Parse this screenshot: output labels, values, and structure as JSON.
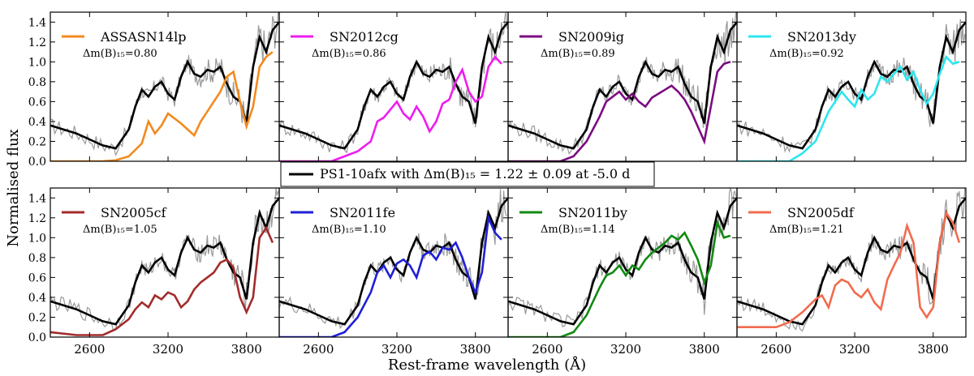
{
  "chart_data": {
    "type": "line",
    "xlabel": "Rest-frame wavelength (Å)",
    "ylabel": "Normalised flux",
    "xlim": [
      2300,
      4050
    ],
    "ylim": [
      0.0,
      1.5
    ],
    "xticks": [
      2600,
      3200,
      3800
    ],
    "yticks": [
      0.0,
      0.2,
      0.4,
      0.6,
      0.8,
      1.0,
      1.2,
      1.4
    ],
    "xtick_labels": [
      "2600",
      "3200",
      "3800"
    ],
    "ytick_labels": [
      "0.0",
      "0.2",
      "0.4",
      "0.6",
      "0.8",
      "1.0",
      "1.2",
      "1.4"
    ],
    "reference": {
      "name": "PS1-10afx",
      "color": "#000000",
      "legend_text": "PS1-10afx with Δm(B)₁₅ = 1.22 ± 0.09 at -5.0 d",
      "x": [
        2300,
        2400,
        2500,
        2600,
        2700,
        2800,
        2900,
        2950,
        3000,
        3050,
        3100,
        3150,
        3200,
        3250,
        3300,
        3350,
        3400,
        3450,
        3500,
        3550,
        3600,
        3650,
        3700,
        3750,
        3800,
        3850,
        3900,
        3950,
        4000,
        4050
      ],
      "y": [
        0.36,
        0.32,
        0.28,
        0.22,
        0.16,
        0.13,
        0.32,
        0.55,
        0.72,
        0.65,
        0.75,
        0.8,
        0.68,
        0.62,
        0.85,
        1.0,
        0.88,
        0.85,
        0.92,
        0.9,
        0.95,
        0.78,
        0.65,
        0.6,
        0.38,
        0.95,
        1.25,
        1.1,
        1.32,
        1.4
      ]
    },
    "panels": [
      {
        "name": "ASSASN14lp",
        "color": "#f28a1e",
        "dm15": "0.80",
        "x": [
          2300,
          2700,
          2800,
          2900,
          3000,
          3050,
          3100,
          3150,
          3200,
          3300,
          3400,
          3450,
          3500,
          3550,
          3600,
          3650,
          3700,
          3750,
          3800,
          3850,
          3900,
          3950,
          4000
        ],
        "y": [
          0.0,
          0.0,
          0.01,
          0.05,
          0.18,
          0.4,
          0.28,
          0.36,
          0.48,
          0.38,
          0.26,
          0.4,
          0.5,
          0.6,
          0.7,
          0.85,
          0.9,
          0.6,
          0.35,
          0.55,
          0.95,
          1.05,
          1.1
        ]
      },
      {
        "name": "SN2012cg",
        "color": "#ee1cee",
        "dm15": "0.86",
        "x": [
          2300,
          2700,
          2800,
          2900,
          3000,
          3050,
          3100,
          3150,
          3200,
          3250,
          3300,
          3350,
          3400,
          3450,
          3500,
          3550,
          3600,
          3650,
          3700,
          3750,
          3800,
          3850,
          3900,
          3950,
          4000
        ],
        "y": [
          0.0,
          0.0,
          0.05,
          0.1,
          0.2,
          0.4,
          0.44,
          0.52,
          0.6,
          0.48,
          0.42,
          0.55,
          0.45,
          0.3,
          0.4,
          0.58,
          0.62,
          0.8,
          0.92,
          0.7,
          0.6,
          0.65,
          0.95,
          1.05,
          0.98
        ]
      },
      {
        "name": "SN2009ig",
        "color": "#7b0c80",
        "dm15": "0.89",
        "x": [
          2300,
          2700,
          2800,
          2900,
          3000,
          3050,
          3100,
          3150,
          3200,
          3250,
          3300,
          3350,
          3400,
          3450,
          3500,
          3550,
          3600,
          3650,
          3700,
          3750,
          3800,
          3850,
          3900,
          3950,
          4000
        ],
        "y": [
          0.0,
          0.0,
          0.05,
          0.2,
          0.45,
          0.6,
          0.65,
          0.7,
          0.62,
          0.68,
          0.6,
          0.55,
          0.64,
          0.68,
          0.72,
          0.76,
          0.7,
          0.62,
          0.5,
          0.35,
          0.2,
          0.55,
          0.9,
          0.98,
          1.0
        ]
      },
      {
        "name": "SN2013dy",
        "color": "#2ce6ee",
        "dm15": "0.92",
        "x": [
          2300,
          2700,
          2800,
          2900,
          3000,
          3050,
          3100,
          3150,
          3200,
          3250,
          3300,
          3350,
          3400,
          3450,
          3500,
          3550,
          3600,
          3650,
          3700,
          3750,
          3800,
          3850,
          3900,
          3950,
          4000
        ],
        "y": [
          0.0,
          0.0,
          0.08,
          0.2,
          0.5,
          0.6,
          0.7,
          0.62,
          0.55,
          0.72,
          0.62,
          0.68,
          0.85,
          0.8,
          0.88,
          0.95,
          0.82,
          0.9,
          0.72,
          0.58,
          0.68,
          0.88,
          1.05,
          0.98,
          1.0
        ]
      },
      {
        "name": "SN2005cf",
        "color": "#a32b2b",
        "dm15": "1.05",
        "x": [
          2300,
          2500,
          2700,
          2800,
          2900,
          2950,
          3000,
          3050,
          3100,
          3150,
          3200,
          3250,
          3300,
          3350,
          3400,
          3450,
          3500,
          3550,
          3600,
          3650,
          3700,
          3750,
          3800,
          3850,
          3900,
          3950,
          4000
        ],
        "y": [
          0.05,
          0.02,
          0.02,
          0.08,
          0.18,
          0.28,
          0.35,
          0.3,
          0.42,
          0.38,
          0.45,
          0.42,
          0.3,
          0.36,
          0.48,
          0.55,
          0.6,
          0.65,
          0.75,
          0.78,
          0.7,
          0.4,
          0.25,
          0.4,
          1.0,
          1.1,
          0.95
        ]
      },
      {
        "name": "SN2011fe",
        "color": "#1f1fd6",
        "dm15": "1.10",
        "x": [
          2300,
          2700,
          2800,
          2900,
          3000,
          3050,
          3100,
          3150,
          3200,
          3250,
          3300,
          3350,
          3400,
          3450,
          3500,
          3550,
          3600,
          3650,
          3700,
          3750,
          3800,
          3850,
          3900,
          3950,
          4000
        ],
        "y": [
          0.0,
          0.0,
          0.05,
          0.2,
          0.45,
          0.65,
          0.72,
          0.6,
          0.74,
          0.78,
          0.72,
          0.6,
          0.82,
          0.86,
          0.78,
          0.9,
          0.88,
          0.95,
          0.8,
          0.6,
          0.45,
          0.65,
          1.2,
          1.05,
          0.98
        ]
      },
      {
        "name": "SN2011by",
        "color": "#118a11",
        "dm15": "1.14",
        "x": [
          2300,
          2700,
          2800,
          2900,
          3000,
          3050,
          3100,
          3150,
          3200,
          3250,
          3300,
          3350,
          3400,
          3450,
          3500,
          3550,
          3600,
          3650,
          3700,
          3750,
          3800,
          3850,
          3900,
          3950,
          4000
        ],
        "y": [
          0.0,
          0.0,
          0.05,
          0.22,
          0.5,
          0.62,
          0.65,
          0.72,
          0.62,
          0.72,
          0.68,
          0.78,
          0.85,
          0.9,
          0.95,
          1.02,
          0.98,
          1.05,
          0.92,
          0.78,
          0.55,
          0.72,
          1.15,
          1.0,
          1.02
        ]
      },
      {
        "name": "SN2005df",
        "color": "#f26b4e",
        "dm15": "1.21",
        "x": [
          2300,
          2600,
          2700,
          2800,
          2900,
          2950,
          3000,
          3050,
          3100,
          3150,
          3200,
          3250,
          3300,
          3350,
          3400,
          3450,
          3500,
          3550,
          3600,
          3650,
          3700,
          3750,
          3800,
          3850,
          3900,
          3950,
          4000
        ],
        "y": [
          0.1,
          0.1,
          0.15,
          0.25,
          0.38,
          0.42,
          0.3,
          0.52,
          0.58,
          0.55,
          0.45,
          0.4,
          0.48,
          0.35,
          0.28,
          0.58,
          0.72,
          0.85,
          1.12,
          0.95,
          0.3,
          0.2,
          0.3,
          0.95,
          1.25,
          1.15,
          0.95
        ]
      }
    ]
  }
}
